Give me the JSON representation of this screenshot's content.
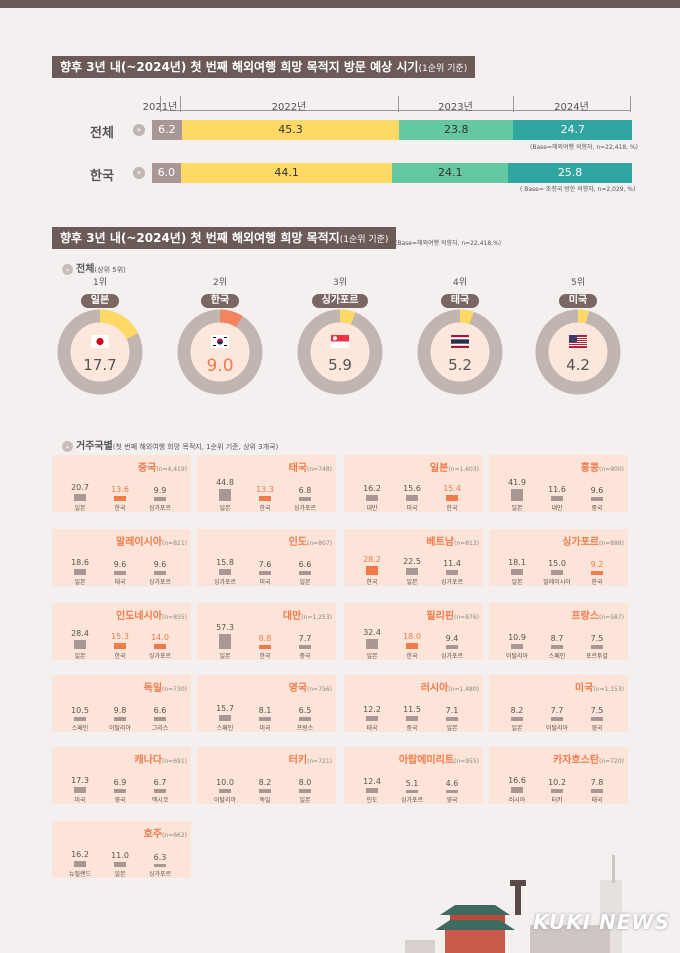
{
  "section1": {
    "title": "향후 3년 내(~2024년) 첫 번째 해외여행 희망 목적지 방문 예상 시기",
    "title_note": "(1순위 기준)",
    "years": [
      "2021년",
      "2022년",
      "2023년",
      "2024년"
    ],
    "rows": [
      {
        "label": "전체",
        "values": [
          "6.2",
          "45.3",
          "23.8",
          "24.7"
        ],
        "base": "(Base=해외여행 의향자, n=22,418, %)"
      },
      {
        "label": "한국",
        "values": [
          "6.0",
          "44.1",
          "24.1",
          "25.8"
        ],
        "base": "( Base= 초청국 방한 의향자, n=2,029, %)"
      }
    ]
  },
  "section2": {
    "title": "향후 3년 내(~2024년) 첫 번째 해외여행 희망 목적지",
    "title_note": "(1순위 기준)",
    "base": "(Base=해외여행 의향자, n=22,418,%)",
    "overall_label": "전체",
    "overall_note": "(상위 5위)",
    "residence_label": "거주국별",
    "residence_note": "(첫 번째 해외여행 희망 목적지, 1순위 기준, 상위 3개국)"
  },
  "chart_data": [
    {
      "type": "bar",
      "title": "향후 3년 내(~2024년) 첫 번째 해외여행 희망 목적지 방문 예상 시기",
      "categories": [
        "2021년",
        "2022년",
        "2023년",
        "2024년"
      ],
      "series": [
        {
          "name": "전체",
          "values": [
            6.2,
            45.3,
            23.8,
            24.7
          ]
        },
        {
          "name": "한국",
          "values": [
            6.0,
            44.1,
            24.1,
            25.8
          ]
        }
      ],
      "stacked": true,
      "colors": [
        "#a89794",
        "#ffd966",
        "#64c8a0",
        "#2fa6a0"
      ]
    },
    {
      "type": "pie",
      "title": "전체(상위 5위)",
      "items": [
        {
          "rank": "1위",
          "name": "일본",
          "value": 17.7,
          "flag": "japan-flag"
        },
        {
          "rank": "2위",
          "name": "한국",
          "value": 9.0,
          "flag": "korea-flag"
        },
        {
          "rank": "3위",
          "name": "싱가포르",
          "value": 5.9,
          "flag": "singapore-flag"
        },
        {
          "rank": "4위",
          "name": "태국",
          "value": 5.2,
          "flag": "thailand-flag"
        },
        {
          "rank": "5위",
          "name": "미국",
          "value": 4.2,
          "flag": "usa-flag"
        }
      ]
    },
    {
      "type": "bar",
      "title": "거주국별",
      "countries": [
        {
          "name": "중국",
          "n": "(n=4,419)",
          "dests": [
            "일본",
            "한국",
            "싱가포르"
          ],
          "values": [
            "20.7",
            "13.6",
            "9.9"
          ],
          "hi": 1
        },
        {
          "name": "태국",
          "n": "(n=748)",
          "dests": [
            "일본",
            "한국",
            "싱가포르"
          ],
          "values": [
            "44.8",
            "13.3",
            "6.8"
          ],
          "hi": 1
        },
        {
          "name": "일본",
          "n": "(n=1,603)",
          "dests": [
            "대만",
            "미국",
            "한국"
          ],
          "values": [
            "16.2",
            "15.6",
            "15.4"
          ],
          "hi": 2
        },
        {
          "name": "홍콩",
          "n": "(n=900)",
          "dests": [
            "일본",
            "대만",
            "중국"
          ],
          "values": [
            "41.9",
            "11.6",
            "9.6"
          ],
          "hi": -1
        },
        {
          "name": "말레이시아",
          "n": "(n=821)",
          "dests": [
            "일본",
            "태국",
            "싱가포르"
          ],
          "values": [
            "18.6",
            "9.6",
            "9.6"
          ],
          "hi": -1
        },
        {
          "name": "인도",
          "n": "(n=807)",
          "dests": [
            "싱가포르",
            "미국",
            "일본"
          ],
          "values": [
            "15.8",
            "7.6",
            "6.6"
          ],
          "hi": -1
        },
        {
          "name": "베트남",
          "n": "(n=813)",
          "dests": [
            "한국",
            "일본",
            "싱가포르"
          ],
          "values": [
            "28.2",
            "22.5",
            "11.4"
          ],
          "hi": 0
        },
        {
          "name": "싱가포르",
          "n": "(n=888)",
          "dests": [
            "일본",
            "말레이시아",
            "한국"
          ],
          "values": [
            "18.1",
            "15.0",
            "9.2"
          ],
          "hi": 2
        },
        {
          "name": "인도네시아",
          "n": "(n=835)",
          "dests": [
            "일본",
            "한국",
            "싱가포르"
          ],
          "values": [
            "28.4",
            "15.3",
            "14.0"
          ],
          "hi": 1,
          "hi2": 2
        },
        {
          "name": "대만",
          "n": "(n=1,253)",
          "dests": [
            "일본",
            "한국",
            "중국"
          ],
          "values": [
            "57.3",
            "8.8",
            "7.7"
          ],
          "hi": 1
        },
        {
          "name": "필리핀",
          "n": "(n=876)",
          "dests": [
            "일본",
            "한국",
            "싱가포르"
          ],
          "values": [
            "32.4",
            "18.0",
            "9.4"
          ],
          "hi": 1
        },
        {
          "name": "프랑스",
          "n": "(n=587)",
          "dests": [
            "이탈리아",
            "스페인",
            "포르투갈"
          ],
          "values": [
            "10.9",
            "8.7",
            "7.5"
          ],
          "hi": -1
        },
        {
          "name": "독일",
          "n": "(n=730)",
          "dests": [
            "스페인",
            "이탈리아",
            "그리스"
          ],
          "values": [
            "10.5",
            "9.8",
            "6.6"
          ],
          "hi": -1
        },
        {
          "name": "영국",
          "n": "(n=756)",
          "dests": [
            "스페인",
            "미국",
            "프랑스"
          ],
          "values": [
            "15.7",
            "8.1",
            "6.5"
          ],
          "hi": -1
        },
        {
          "name": "러시아",
          "n": "(n=1,480)",
          "dests": [
            "태국",
            "중국",
            "일본"
          ],
          "values": [
            "12.2",
            "11.5",
            "7.1"
          ],
          "hi": -1
        },
        {
          "name": "미국",
          "n": "(n=1,153)",
          "dests": [
            "일본",
            "이탈리아",
            "영국"
          ],
          "values": [
            "8.2",
            "7.7",
            "7.5"
          ],
          "hi": -1
        },
        {
          "name": "캐나다",
          "n": "(n=691)",
          "dests": [
            "미국",
            "영국",
            "멕시코"
          ],
          "values": [
            "17.3",
            "6.9",
            "6.7"
          ],
          "hi": -1
        },
        {
          "name": "터키",
          "n": "(n=721)",
          "dests": [
            "이탈리아",
            "독일",
            "일본"
          ],
          "values": [
            "10.0",
            "8.2",
            "8.0"
          ],
          "hi": -1
        },
        {
          "name": "아랍에미리트",
          "n": "(n=955)",
          "dests": [
            "인도",
            "싱가포르",
            "영국"
          ],
          "values": [
            "12.4",
            "5.1",
            "4.6"
          ],
          "hi": -1
        },
        {
          "name": "카자흐스탄",
          "n": "(n=720)",
          "dests": [
            "러시아",
            "터키",
            "태국"
          ],
          "values": [
            "16.6",
            "10.2",
            "7.8"
          ],
          "hi": -1
        },
        {
          "name": "호주",
          "n": "(n=662)",
          "dests": [
            "뉴질랜드",
            "일본",
            "싱가포르"
          ],
          "values": [
            "16.2",
            "11.0",
            "6.3"
          ],
          "hi": -1
        }
      ]
    }
  ],
  "watermark": "KUKI NEWS"
}
